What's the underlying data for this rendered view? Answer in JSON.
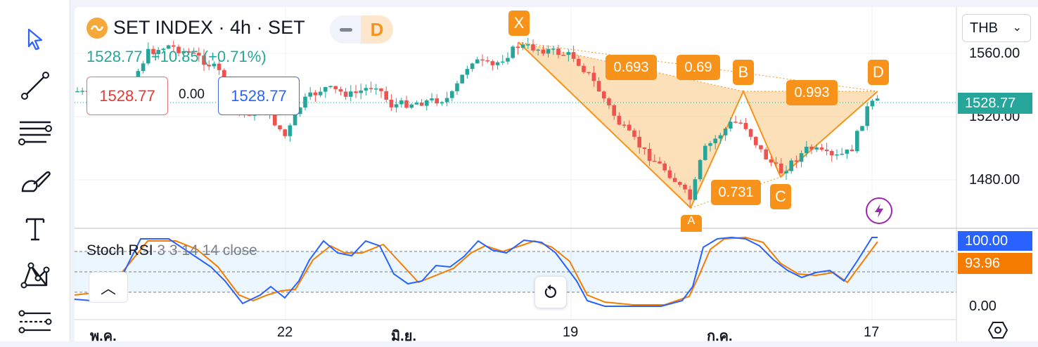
{
  "symbol": {
    "title": "SET INDEX · 4h · SET",
    "mode_letter": "D",
    "price_line": "1528.77  +10.85 (+0.71%)",
    "sell_price": "1528.77",
    "spread": "0.00",
    "buy_price": "1528.77"
  },
  "currency": {
    "value": "THB",
    "chevron": "⌄"
  },
  "price_axis": [
    "1560.00",
    "1520.00",
    "1480.00"
  ],
  "price_tag_current": "1528.77",
  "stoch": {
    "title_main": "Stoch RSI",
    "title_params": "3 3 14 14 close",
    "axis_bottom": "0.00",
    "k_value": "100.00",
    "d_value": "93.96",
    "collapse_glyph": "︿"
  },
  "time_axis": [
    "พ.ค.",
    "22",
    "มิ.ย.",
    "19",
    "ก.ค.",
    "17"
  ],
  "pattern": {
    "points": {
      "X": "X",
      "A": "A",
      "B": "B",
      "C": "C",
      "D": "D"
    },
    "ratios": {
      "xb_outer": "0.693",
      "xb_inner": "0.69",
      "bd": "0.993",
      "ac": "0.731"
    }
  },
  "colors": {
    "up": "#26a69a",
    "down": "#ef5350",
    "pattern": "#f7931a",
    "k_line": "#2962ff",
    "d_line": "#f57c00"
  },
  "tools": [
    "cursor-icon",
    "trend-line-icon",
    "fib-retracement-icon",
    "brush-icon",
    "text-icon",
    "pattern-icon",
    "prediction-icon"
  ]
}
